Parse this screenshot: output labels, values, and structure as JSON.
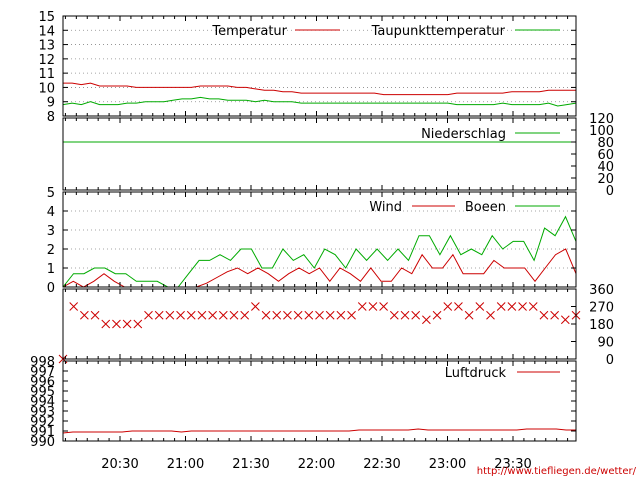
{
  "chart_data": [
    {
      "type": "line",
      "panel": "temperature",
      "ylim": [
        8,
        15
      ],
      "yticks": [
        "8",
        "9",
        "10",
        "11",
        "12",
        "13",
        "14",
        "15"
      ],
      "grid": "dotted",
      "series": [
        {
          "name": "Temperatur",
          "color": "#cc0000",
          "values": [
            10.3,
            10.3,
            10.2,
            10.3,
            10.1,
            10.1,
            10.1,
            10.1,
            10.0,
            10.0,
            10.0,
            10.0,
            10.0,
            10.0,
            10.0,
            10.1,
            10.1,
            10.1,
            10.1,
            10.0,
            10.0,
            9.9,
            9.8,
            9.8,
            9.7,
            9.7,
            9.6,
            9.6,
            9.6,
            9.6,
            9.6,
            9.6,
            9.6,
            9.6,
            9.6,
            9.5,
            9.5,
            9.5,
            9.5,
            9.5,
            9.5,
            9.5,
            9.5,
            9.6,
            9.6,
            9.6,
            9.6,
            9.6,
            9.6,
            9.7,
            9.7,
            9.7,
            9.7,
            9.8,
            9.8,
            9.8,
            9.8
          ]
        },
        {
          "name": "Taupunkttemperatur",
          "color": "#00aa00",
          "values": [
            8.8,
            8.9,
            8.8,
            9.0,
            8.8,
            8.8,
            8.8,
            8.9,
            8.9,
            9.0,
            9.0,
            9.0,
            9.1,
            9.2,
            9.2,
            9.3,
            9.2,
            9.2,
            9.1,
            9.1,
            9.1,
            9.0,
            9.1,
            9.0,
            9.0,
            9.0,
            8.9,
            8.9,
            8.9,
            8.9,
            8.9,
            8.9,
            8.9,
            8.9,
            8.9,
            8.9,
            8.9,
            8.9,
            8.9,
            8.9,
            8.9,
            8.9,
            8.9,
            8.8,
            8.8,
            8.8,
            8.8,
            8.8,
            8.9,
            8.8,
            8.8,
            8.8,
            8.8,
            8.9,
            8.7,
            8.8,
            8.9
          ]
        }
      ]
    },
    {
      "type": "line",
      "panel": "precipitation",
      "ylim": [
        0,
        120
      ],
      "yticks": [
        "0",
        "20",
        "40",
        "60",
        "80",
        "100",
        "120"
      ],
      "series": [
        {
          "name": "Niederschlag",
          "color": "#00aa00",
          "constant": 80
        }
      ]
    },
    {
      "type": "line",
      "panel": "wind",
      "ylim": [
        0,
        5
      ],
      "yticks": [
        "0",
        "1",
        "2",
        "3",
        "4",
        "5"
      ],
      "grid": "dotted",
      "series": [
        {
          "name": "Wind",
          "color": "#cc0000",
          "values": [
            0,
            0.3,
            0,
            0.3,
            0.7,
            0.3,
            0,
            0,
            0,
            0,
            0,
            0,
            0,
            0,
            0.2,
            0.5,
            0.8,
            1,
            0.7,
            1,
            0.7,
            0.3,
            0.7,
            1,
            0.7,
            1,
            0.3,
            1,
            0.7,
            0.3,
            1,
            0.3,
            0.3,
            1,
            0.7,
            1.7,
            1,
            1,
            1.7,
            0.7,
            0.7,
            0.7,
            1.4,
            1,
            1,
            1,
            0.3,
            1,
            1.7,
            2,
            0.7
          ]
        },
        {
          "name": "Boeen",
          "color": "#00aa00",
          "values": [
            0,
            0.7,
            0.7,
            1,
            1,
            0.7,
            0.7,
            0.3,
            0.3,
            0.3,
            0,
            0,
            0.7,
            1.4,
            1.4,
            1.7,
            1.4,
            2,
            2,
            1,
            1,
            2,
            1.4,
            1.7,
            1,
            2,
            1.7,
            1,
            2,
            1.4,
            2,
            1.4,
            2,
            1.4,
            2.7,
            2.7,
            1.7,
            2.7,
            1.7,
            2,
            1.7,
            2.7,
            2,
            2.4,
            2.4,
            1.4,
            3.1,
            2.7,
            3.7,
            2.4
          ]
        }
      ]
    },
    {
      "type": "scatter",
      "panel": "wind-direction",
      "ylim": [
        0,
        360
      ],
      "yticks": [
        "0",
        "90",
        "180",
        "270",
        "360"
      ],
      "marker": "x",
      "series": [
        {
          "color": "#cc0000",
          "values": [
            0,
            270,
            225,
            225,
            180,
            180,
            180,
            180,
            225,
            225,
            225,
            225,
            225,
            225,
            225,
            225,
            225,
            225,
            270,
            225,
            225,
            225,
            225,
            225,
            225,
            225,
            225,
            225,
            270,
            270,
            270,
            225,
            225,
            225,
            202,
            225,
            270,
            270,
            225,
            270,
            225,
            270,
            270,
            270,
            270,
            225,
            225,
            202,
            225
          ]
        }
      ]
    },
    {
      "type": "line",
      "panel": "pressure",
      "ylim": [
        990,
        998
      ],
      "yticks": [
        "990",
        "991",
        "992",
        "993",
        "994",
        "995",
        "996",
        "997",
        "998"
      ],
      "series": [
        {
          "name": "Luftdruck",
          "color": "#cc0000",
          "values": [
            990.8,
            990.9,
            990.9,
            990.9,
            990.9,
            990.9,
            990.9,
            991,
            991,
            991,
            991,
            991,
            990.9,
            991,
            991,
            991,
            991,
            991,
            991,
            991,
            991,
            991,
            991,
            991,
            991,
            991,
            991,
            991,
            991,
            991,
            991.1,
            991.1,
            991.1,
            991.1,
            991.1,
            991.1,
            991.2,
            991.1,
            991.1,
            991.1,
            991.1,
            991.1,
            991.1,
            991.1,
            991.1,
            991.1,
            991.1,
            991.2,
            991.2,
            991.2,
            991.2,
            991.1,
            991.1
          ]
        }
      ]
    }
  ],
  "time_axis": {
    "labels": [
      "20:30",
      "21:00",
      "21:30",
      "22:00",
      "22:30",
      "23:00",
      "23:30"
    ]
  },
  "credit": "http://www.tiefliegen.de/wetter/"
}
